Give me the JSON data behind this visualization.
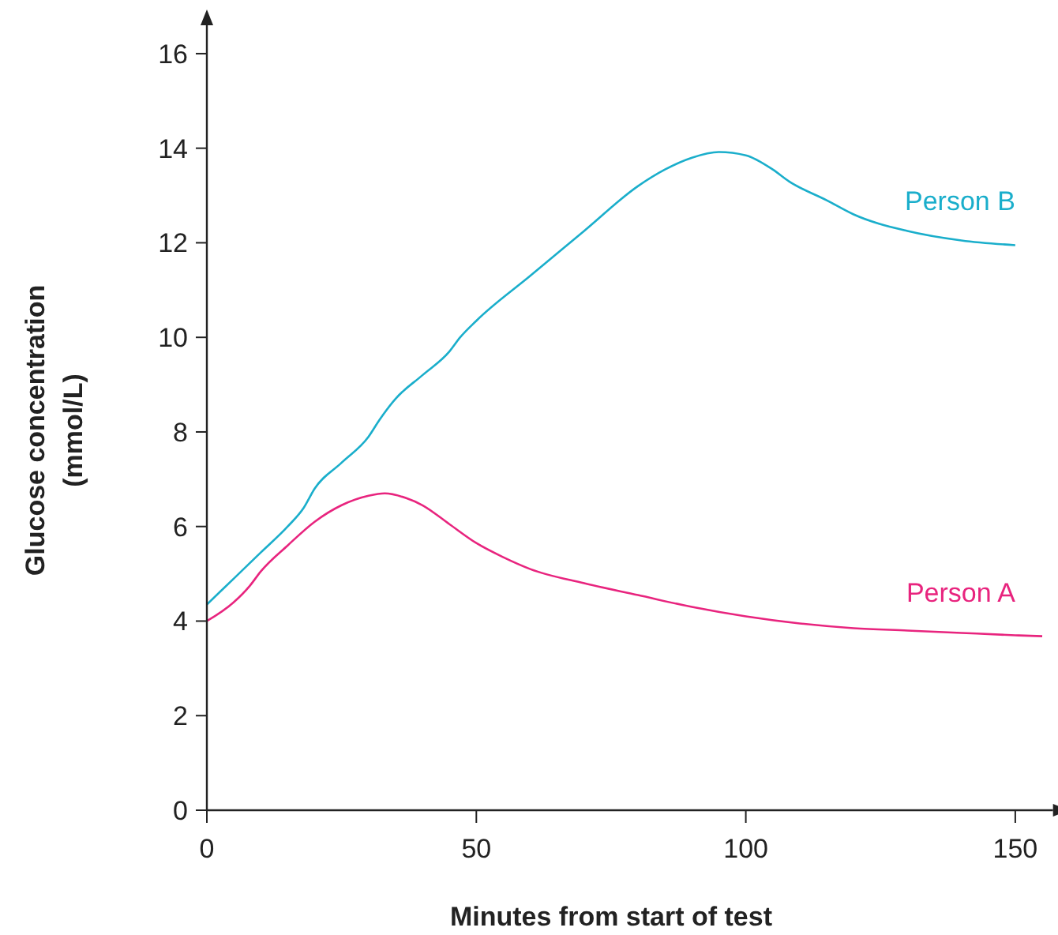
{
  "chart_data": {
    "type": "line",
    "xlabel": "Minutes from start of test",
    "ylabel": "Glucose concentration (mmol/L)",
    "xlim": [
      0,
      157
    ],
    "ylim": [
      0,
      16.6
    ],
    "xticks": [
      0,
      50,
      100,
      150
    ],
    "yticks": [
      0,
      2,
      4,
      6,
      8,
      10,
      12,
      14,
      16
    ],
    "grid": false,
    "marker": "none",
    "line_style": "solid",
    "series": [
      {
        "name": "Person A",
        "color": "#e8247e",
        "x": [
          0,
          5,
          8,
          10,
          15,
          20,
          25,
          30,
          33,
          37,
          40,
          45,
          50,
          55,
          60,
          70,
          80,
          90,
          100,
          110,
          120,
          130,
          140,
          150,
          155
        ],
        "values": [
          4.0,
          4.4,
          4.75,
          5.05,
          5.6,
          6.1,
          6.45,
          6.65,
          6.7,
          6.6,
          6.45,
          6.05,
          5.65,
          5.35,
          5.1,
          4.8,
          4.55,
          4.3,
          4.1,
          3.95,
          3.85,
          3.8,
          3.75,
          3.7,
          3.68
        ]
      },
      {
        "name": "Person B",
        "color": "#1aaecb",
        "x": [
          0,
          5,
          10,
          15,
          18,
          20,
          25,
          30,
          32,
          35,
          40,
          45,
          47,
          50,
          60,
          70,
          80,
          85,
          90,
          95,
          100,
          105,
          108,
          115,
          120,
          130,
          140,
          150
        ],
        "values": [
          4.35,
          4.9,
          5.45,
          6.0,
          6.4,
          6.8,
          7.35,
          7.9,
          8.25,
          8.7,
          9.2,
          9.7,
          10.0,
          10.35,
          11.3,
          12.25,
          13.2,
          13.55,
          13.8,
          13.92,
          13.85,
          13.55,
          13.3,
          12.9,
          12.6,
          12.25,
          12.05,
          11.95
        ]
      }
    ]
  }
}
